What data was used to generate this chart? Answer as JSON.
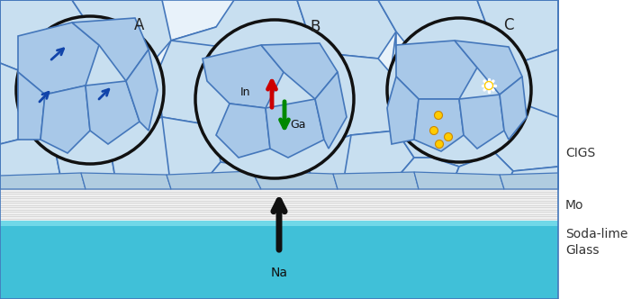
{
  "fig_width": 7.02,
  "fig_height": 3.32,
  "dpi": 100,
  "bg_color": "#ffffff",
  "cigs_bg": "#e8f2fa",
  "grain_fill_light": "#c8dff0",
  "grain_fill_dark": "#a8c8e8",
  "grain_edge": "#4477bb",
  "mo_bg": "#f0f0f0",
  "mo_stripe": "#d8d8d8",
  "glass_top": "#40c0d8",
  "glass_bot": "#20a0c0",
  "circle_edge": "#111111",
  "label_A": "A",
  "label_B": "B",
  "label_C": "C",
  "label_CIGS": "CIGS",
  "label_Mo": "Mo",
  "label_Soda1": "Soda-lime",
  "label_Glass": "Glass",
  "label_Na": "Na",
  "label_In": "In",
  "label_Ga": "Ga",
  "arrow_red": "#cc0000",
  "arrow_green": "#008800",
  "arrow_black": "#111111",
  "dot_yellow": "#ffcc00",
  "dot_outline": "#cc8800"
}
